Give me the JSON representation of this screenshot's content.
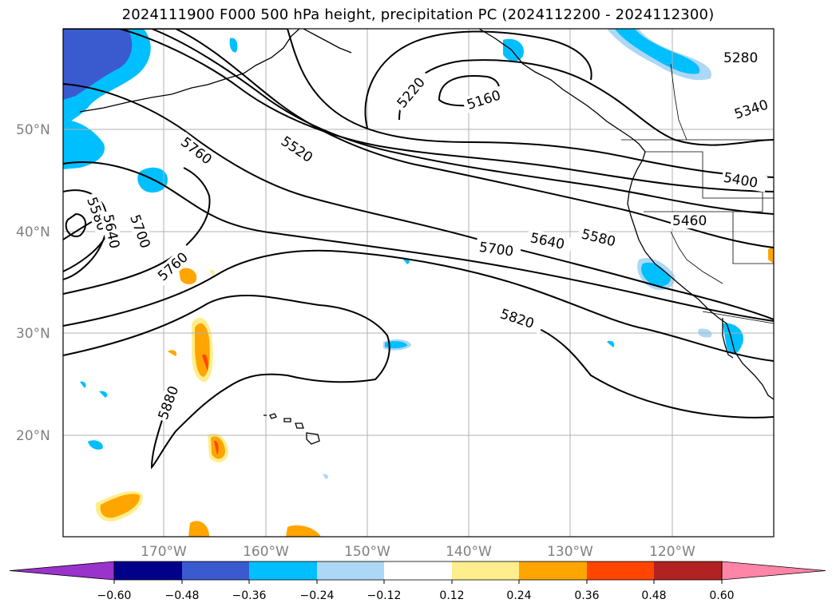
{
  "title": "2024111900 F000 500 hPa height, precipitation PC (2024112200 - 2024112300)",
  "lat_labels": [
    {
      "text": "50°N",
      "lat": 50
    },
    {
      "text": "40°N",
      "lat": 40
    },
    {
      "text": "30°N",
      "lat": 30
    },
    {
      "text": "20°N",
      "lat": 20
    }
  ],
  "lon_labels": [
    {
      "text": "170°W",
      "lon": -170
    },
    {
      "text": "160°W",
      "lon": -160
    },
    {
      "text": "150°W",
      "lon": -150
    },
    {
      "text": "140°W",
      "lon": -140
    },
    {
      "text": "130°W",
      "lon": -130
    },
    {
      "text": "120°W",
      "lon": -120
    }
  ],
  "contour_labels": [
    "5280",
    "5340",
    "5400",
    "5460",
    "5580",
    "5640",
    "5700",
    "5820",
    "5880",
    "5760",
    "5760",
    "5520",
    "5220",
    "5160",
    "5580",
    "5640",
    "5700"
  ],
  "colorbar": {
    "colors": [
      "#9933cc",
      "#00008b",
      "#3a5bcf",
      "#00bfff",
      "#add8f5",
      "#ffffff",
      "#ffee8c",
      "#ffa500",
      "#ff4500",
      "#b22222",
      "#ff85a8"
    ],
    "ticks": [
      "−0.60",
      "−0.48",
      "−0.36",
      "−0.24",
      "−0.12",
      "0.12",
      "0.24",
      "0.36",
      "0.48",
      "0.60"
    ]
  }
}
